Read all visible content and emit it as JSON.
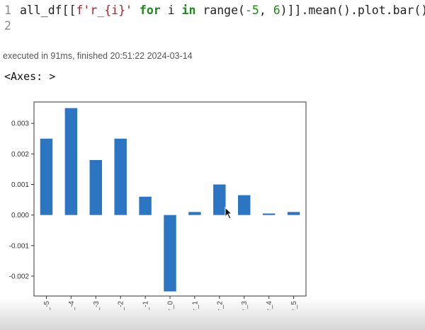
{
  "cell": {
    "line1_no": "1",
    "line2_no": "2",
    "code_tokens": [
      {
        "t": "all_df[[",
        "c": "plain"
      },
      {
        "t": "f'r_{i}'",
        "c": "str"
      },
      {
        "t": " ",
        "c": "plain"
      },
      {
        "t": "for",
        "c": "kw"
      },
      {
        "t": " i ",
        "c": "plain"
      },
      {
        "t": "in",
        "c": "kw"
      },
      {
        "t": " range(",
        "c": "plain"
      },
      {
        "t": "-5",
        "c": "num"
      },
      {
        "t": ", ",
        "c": "plain"
      },
      {
        "t": "6",
        "c": "num"
      },
      {
        "t": ")]].mean().plot.bar()",
        "c": "plain"
      }
    ],
    "exec_status": "executed in 91ms, finished 20:51:22 2024-03-14",
    "output_text": "<Axes: >"
  },
  "colors": {
    "bar": "#2b75c3",
    "axes": "#333333",
    "text": "#333333"
  },
  "chart_data": {
    "type": "bar",
    "categories": [
      "r_-5",
      "r_-4",
      "r_-3",
      "r_-2",
      "r_-1",
      "r_0",
      "r_1",
      "r_2",
      "r_3",
      "r_4",
      "r_5"
    ],
    "values": [
      0.0025,
      0.0035,
      0.0018,
      0.0025,
      0.0006,
      -0.0025,
      0.0001,
      0.001,
      0.00065,
      5e-05,
      0.0001
    ],
    "yticks": [
      -0.002,
      -0.001,
      0.0,
      0.001,
      0.002,
      0.003
    ],
    "ytick_labels": [
      "-0.002",
      "-0.001",
      "0.000",
      "0.001",
      "0.002",
      "0.003"
    ],
    "ylim": [
      -0.00265,
      0.0037
    ],
    "title": "",
    "xlabel": "",
    "ylabel": "",
    "grid": false,
    "legend": false
  }
}
